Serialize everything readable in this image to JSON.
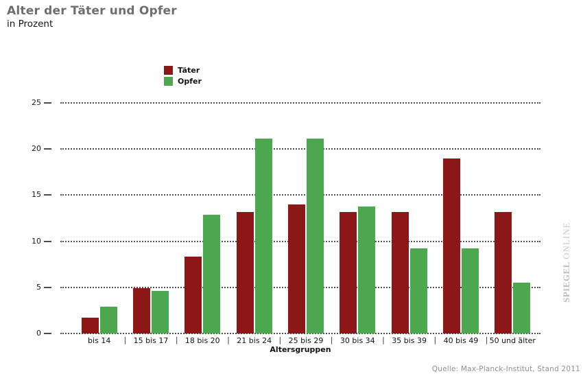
{
  "header": {
    "title": "Alter der Täter und Opfer",
    "subtitle": "in Prozent"
  },
  "chart_data": {
    "type": "bar",
    "title": "Alter der Täter und Opfer",
    "subtitle": "in Prozent",
    "categories": [
      "bis 14",
      "15 bis 17",
      "18 bis 20",
      "21 bis 24",
      "25 bis 29",
      "30 bis 34",
      "35 bis 39",
      "40 bis 49",
      "50 und älter"
    ],
    "series": [
      {
        "name": "Täter",
        "color": "#8b1816",
        "values": [
          1.7,
          4.9,
          8.3,
          13.2,
          14.0,
          13.2,
          13.2,
          19.0,
          13.2
        ]
      },
      {
        "name": "Opfer",
        "color": "#4da74f",
        "values": [
          2.9,
          4.6,
          12.9,
          21.1,
          21.1,
          13.8,
          9.2,
          9.2,
          5.5
        ]
      }
    ],
    "xlabel": "Altersgruppen",
    "ylabel": "",
    "ylim": [
      0,
      25
    ],
    "yticks": [
      0,
      5,
      10,
      15,
      20,
      25
    ],
    "grid": "horizontal dotted",
    "legend_position": "top-left above plot"
  },
  "watermark": {
    "brand": "SPIEGEL",
    "suffix": "ONLINE"
  },
  "footer": {
    "source": "Quelle: Max-Planck-Institut, Stand 2011"
  },
  "colors": {
    "taeter": "#8b1816",
    "opfer": "#4da74f",
    "grid": "#4f4f4f",
    "title_text": "#6e6e6e",
    "source_text": "#8f8f8f",
    "watermark_text": "#c3c3c3"
  }
}
